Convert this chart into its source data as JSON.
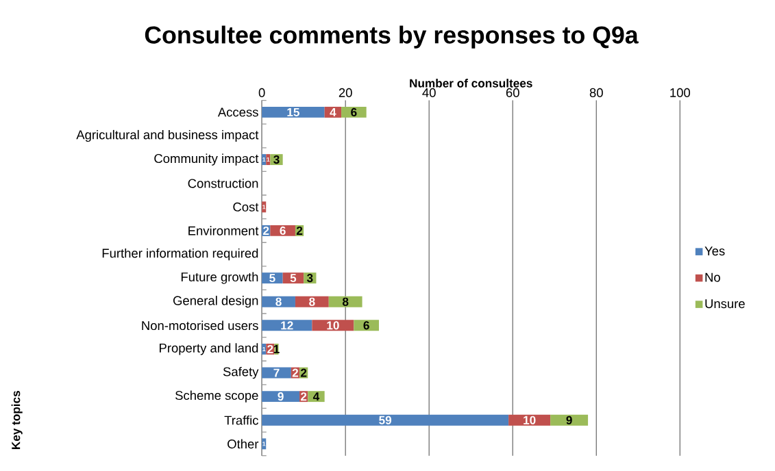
{
  "chart_data": {
    "type": "bar",
    "orientation": "horizontal",
    "stacked": true,
    "title": "Consultee comments by responses to Q9a",
    "xlabel": "Number of consultees",
    "ylabel": "Key topics",
    "categories": [
      "Access",
      "Agricultural and business impact",
      "Community impact",
      "Construction",
      "Cost",
      "Environment",
      "Further information required",
      "Future growth",
      "General design",
      "Non-motorised users",
      "Property and land",
      "Safety",
      "Scheme scope",
      "Traffic",
      "Other"
    ],
    "series": [
      {
        "name": "Yes",
        "color": "#4f81bd",
        "values": [
          15,
          null,
          1,
          null,
          null,
          2,
          null,
          5,
          8,
          12,
          1,
          7,
          9,
          59,
          1
        ],
        "value_labels": [
          "15",
          null,
          "1",
          null,
          null,
          "2",
          null,
          "5",
          "8",
          "12",
          "1",
          "7",
          "9",
          "59",
          "1"
        ]
      },
      {
        "name": "No",
        "color": "#c0504d",
        "values": [
          4,
          null,
          1,
          null,
          1,
          6,
          null,
          5,
          8,
          10,
          2,
          2,
          2,
          10,
          null
        ],
        "value_labels": [
          "4",
          null,
          "1",
          null,
          "1",
          "6",
          null,
          "5",
          "8",
          "10",
          "2",
          "2",
          "2",
          "10",
          null
        ]
      },
      {
        "name": "Unsure",
        "color": "#9bbb59",
        "values": [
          6,
          null,
          3,
          null,
          null,
          2,
          null,
          3,
          8,
          6,
          1,
          2,
          4,
          9,
          null
        ],
        "value_labels": [
          "6",
          null,
          "3",
          null,
          null,
          "2",
          null,
          "3",
          "8",
          "6",
          "1",
          "2",
          "4",
          "9",
          null
        ]
      }
    ],
    "xlim": [
      0,
      100
    ],
    "xticks": [
      0,
      20,
      40,
      60,
      80,
      100
    ],
    "grid": "x",
    "legend": "right"
  }
}
